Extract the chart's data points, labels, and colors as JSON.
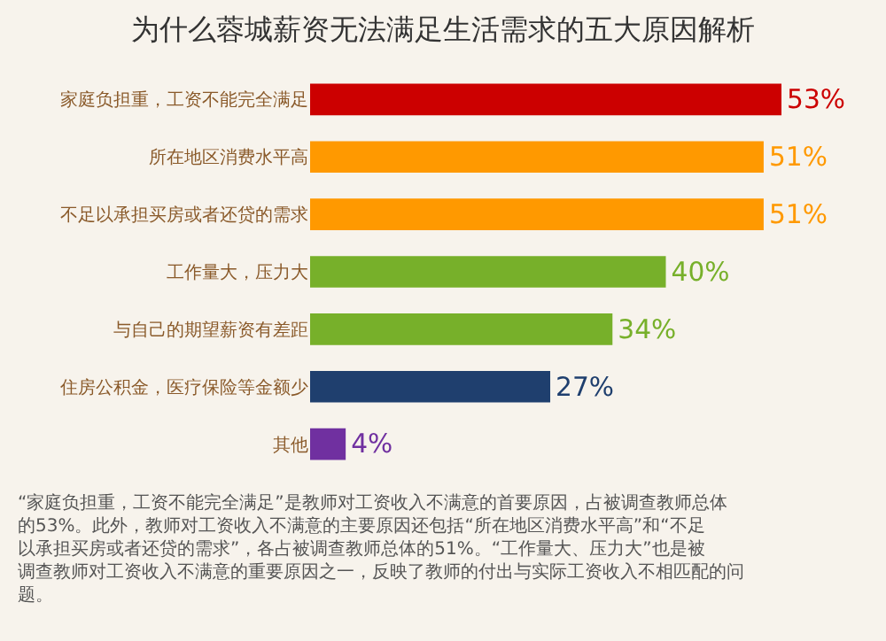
{
  "chart_data": {
    "type": "bar",
    "orientation": "horizontal",
    "title": "为什么蓉城薪资无法满足生活需求的五大原因解析",
    "categories": [
      "家庭负担重，工资不能完全满足",
      "所在地区消费水平高",
      "不足以承担买房或者还贷的需求",
      "工作量大，压力大",
      "与自己的期望薪资有差距",
      "住房公积金，医疗保险等金额少",
      "其他"
    ],
    "values": [
      53,
      51,
      51,
      40,
      34,
      27,
      4
    ],
    "colors": [
      "#cc0000",
      "#ff9900",
      "#ff9900",
      "#77b02a",
      "#77b02a",
      "#1f3f6e",
      "#7030a0"
    ],
    "value_labels": [
      "53%",
      "51%",
      "51%",
      "40%",
      "34%",
      "27%",
      "4%"
    ],
    "annotations": [
      "“家庭负担重，工资不能完全满足”是教师对工资收入不满意的首要原因，占被调查教师总体的53%。此外，教师对工资收入不满意的主要原因还包括“所在地区消费水平高”和“不足以承担买房或者还贷的需求”，各占被调查教师总体的51%。“工作量大、压力大”也是被调查教师对工资收入不满意的重要原因之一，反映了教师的付出与实际工资收入不相匹配的问题。"
    ],
    "grid": false
  }
}
